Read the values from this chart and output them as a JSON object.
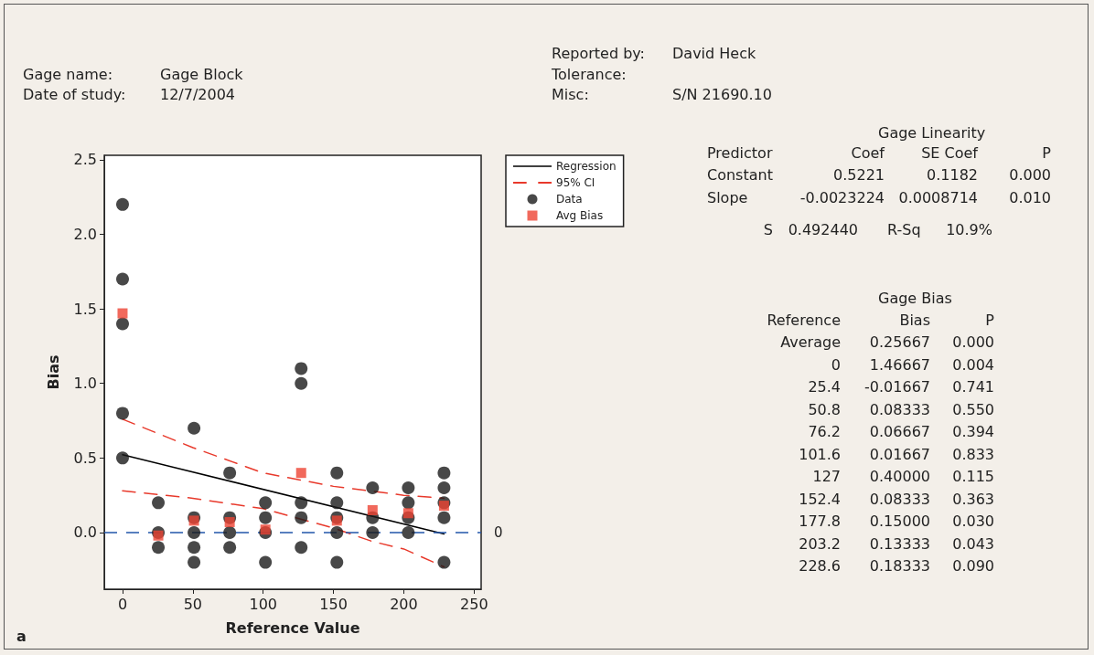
{
  "chart_data": {
    "type": "scatter",
    "xlabel": "Reference Value",
    "ylabel": "Bias",
    "xlim": [
      -13,
      255
    ],
    "xticks": [
      0,
      50,
      100,
      150,
      200,
      250
    ],
    "ylim": [
      -0.38,
      2.53
    ],
    "yticks": [
      {
        "value": 0,
        "label": "0.0"
      },
      0.5,
      {
        "value": 1,
        "label": "1.0"
      },
      1.5,
      {
        "value": 2,
        "label": "2.0"
      },
      2.5
    ],
    "grid": false,
    "legend": "right",
    "series": [
      {
        "name": "Regression",
        "type": "line",
        "color": "#000000",
        "line_style": "solid",
        "marker": "none",
        "x": [
          0,
          228.6
        ],
        "values": [
          0.522,
          -0.009
        ]
      },
      {
        "name": "95% CI",
        "type": "line",
        "color": "#e8392b",
        "line_style": "dashed",
        "marker": "none",
        "x": [
          0,
          50,
          100,
          150,
          200,
          228.6
        ],
        "values": [
          0.76,
          0.57,
          0.4,
          0.31,
          0.25,
          0.23
        ]
      },
      {
        "type": "line",
        "color": "#e8392b",
        "line_style": "dashed",
        "marker": "none",
        "x": [
          0,
          50,
          100,
          150,
          177.8,
          200,
          228.6
        ],
        "values": [
          0.28,
          0.23,
          0.16,
          0.03,
          -0.06,
          -0.11,
          -0.23
        ]
      },
      {
        "name": "Data",
        "color": "#1a1a1a",
        "marker": "circle",
        "x": [
          0,
          0,
          0,
          0,
          0,
          25.4,
          25.4,
          25.4,
          50.8,
          50.8,
          50.8,
          50.8,
          50.8,
          76.2,
          76.2,
          76.2,
          76.2,
          101.6,
          101.6,
          101.6,
          101.6,
          127,
          127,
          127,
          127,
          127,
          152.4,
          152.4,
          152.4,
          152.4,
          152.4,
          177.8,
          177.8,
          177.8,
          203.2,
          203.2,
          203.2,
          203.2,
          228.6,
          228.6,
          228.6,
          228.6,
          228.6
        ],
        "values": [
          2.2,
          1.7,
          1.4,
          0.8,
          0.5,
          0.2,
          0,
          -0.1,
          0.7,
          0.1,
          0,
          -0.1,
          -0.2,
          0.4,
          0.1,
          0,
          -0.1,
          0.2,
          0.1,
          0,
          -0.2,
          1.1,
          1.0,
          0.2,
          0.1,
          -0.1,
          0.4,
          0.2,
          0.1,
          0,
          -0.2,
          0.3,
          0.1,
          0,
          0.3,
          0.2,
          0.1,
          0,
          0.4,
          0.3,
          0.2,
          0.1,
          -0.2
        ]
      },
      {
        "name": "Avg Bias",
        "color": "#ee4433",
        "marker": "square",
        "x": [
          0,
          25.4,
          50.8,
          76.2,
          101.6,
          127,
          152.4,
          177.8,
          203.2,
          228.6
        ],
        "values": [
          1.47,
          -0.02,
          0.08,
          0.07,
          0.02,
          0.4,
          0.08,
          0.15,
          0.13,
          0.18
        ]
      }
    ],
    "ref_lines": [
      {
        "axis": "y",
        "value": 0,
        "label": "0",
        "color": "#2255aa",
        "line_style": "dashed"
      }
    ],
    "annotations": [
      "Gage name:",
      "Gage Block",
      "Date of study:",
      "12/7/2004",
      "Reported by:",
      "David Heck",
      "Tolerance:",
      "Misc:",
      "S/N 21690.10",
      "Gage Linearity",
      "Predictor",
      "Coef",
      "SE Coef",
      "P",
      "Constant",
      "0.5221",
      "0.1182",
      "0.000",
      "Slope",
      "-0.0023224",
      "0.0008714",
      "0.010",
      "S",
      "0.492440",
      "R-Sq",
      "10.9%",
      "Gage Bias",
      "Reference",
      "Bias",
      "P",
      "Average",
      "0.25667",
      "0.000",
      "0",
      "1.46667",
      "0.004",
      "25.4",
      "-0.01667",
      "0.741",
      "50.8",
      "0.08333",
      "0.550",
      "76.2",
      "0.06667",
      "0.394",
      "101.6",
      "0.01667",
      "0.833",
      "127",
      "0.40000",
      "0.115",
      "152.4",
      "0.08333",
      "0.363",
      "177.8",
      "0.15000",
      "0.030",
      "203.2",
      "0.13333",
      "0.043",
      "228.6",
      "0.18333",
      "0.090",
      "a"
    ]
  }
}
